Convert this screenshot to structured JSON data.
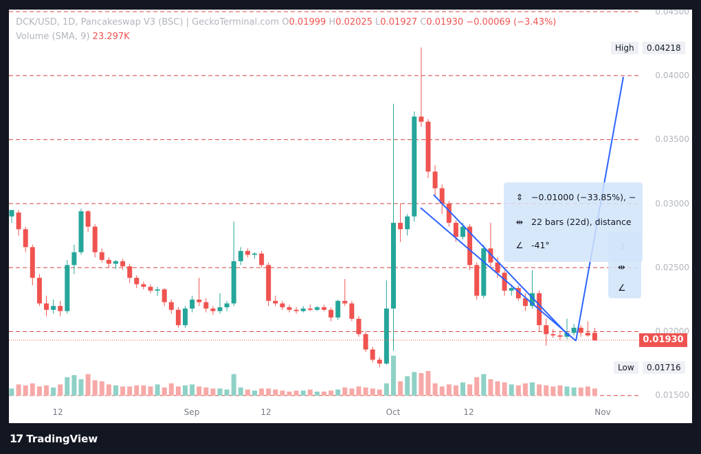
{
  "header": {
    "symbol": "DCK/USD, 1D, Pancakeswap V3 (BSC) | GeckoTerminal.com",
    "o_label": "O",
    "o": "0.01999",
    "h_label": "H",
    "h": "0.02025",
    "l_label": "L",
    "l": "0.01927",
    "c_label": "C",
    "c": "0.01930",
    "change": "−0.00069 (−3.43%)",
    "volume_label": "Volume (SMA, 9)",
    "volume": "23.297K"
  },
  "price_axis": [
    "0.04500",
    "0.04000",
    "0.03500",
    "0.03000",
    "0.02500",
    "0.02000",
    "0.01500"
  ],
  "high_label": "High",
  "high_value": "0.04218",
  "low_label": "Low",
  "low_value": "0.01716",
  "current_price": "0.01930",
  "time_axis": [
    "12",
    "Sep",
    "12",
    "Oct",
    "12",
    "Nov"
  ],
  "measure": {
    "price_change": "−0.01000 (−33.85%), −",
    "bars": "22 bars (22d), distance",
    "angle": "-41°"
  },
  "branding": "TradingView",
  "colors": {
    "up": "#26a69a",
    "down": "#ef5350",
    "vol_up": "#8fd1c7",
    "vol_down": "#f7a9a7",
    "hline": "#d5473f",
    "trend": "#2962ff",
    "measure_bg": "#d1e4fa"
  },
  "chart_data": {
    "type": "candlestick",
    "interval": "1D",
    "ylim": [
      0.0144,
      0.0452
    ],
    "hlines": [
      0.045,
      0.04,
      0.035,
      0.03,
      0.025,
      0.02,
      0.015
    ],
    "candles": [
      {
        "o": 0.029,
        "h": 0.0295,
        "l": 0.0285,
        "c": 0.0295
      },
      {
        "o": 0.0293,
        "h": 0.0295,
        "l": 0.0275,
        "c": 0.028
      },
      {
        "o": 0.028,
        "h": 0.0282,
        "l": 0.0262,
        "c": 0.0266
      },
      {
        "o": 0.0266,
        "h": 0.0268,
        "l": 0.0236,
        "c": 0.0242
      },
      {
        "o": 0.0242,
        "h": 0.0245,
        "l": 0.022,
        "c": 0.0222
      },
      {
        "o": 0.0222,
        "h": 0.0228,
        "l": 0.0212,
        "c": 0.0217
      },
      {
        "o": 0.0217,
        "h": 0.0225,
        "l": 0.0214,
        "c": 0.022
      },
      {
        "o": 0.022,
        "h": 0.0224,
        "l": 0.0212,
        "c": 0.0216
      },
      {
        "o": 0.0216,
        "h": 0.0256,
        "l": 0.0214,
        "c": 0.0252
      },
      {
        "o": 0.0252,
        "h": 0.0268,
        "l": 0.0245,
        "c": 0.0262
      },
      {
        "o": 0.0262,
        "h": 0.0296,
        "l": 0.026,
        "c": 0.0294
      },
      {
        "o": 0.0294,
        "h": 0.0295,
        "l": 0.0278,
        "c": 0.0282
      },
      {
        "o": 0.0282,
        "h": 0.0284,
        "l": 0.0258,
        "c": 0.0262
      },
      {
        "o": 0.0262,
        "h": 0.0265,
        "l": 0.0254,
        "c": 0.0256
      },
      {
        "o": 0.0256,
        "h": 0.0258,
        "l": 0.025,
        "c": 0.0253
      },
      {
        "o": 0.0253,
        "h": 0.0256,
        "l": 0.0249,
        "c": 0.0255
      },
      {
        "o": 0.0255,
        "h": 0.0257,
        "l": 0.0248,
        "c": 0.0251
      },
      {
        "o": 0.0251,
        "h": 0.0253,
        "l": 0.0238,
        "c": 0.0242
      },
      {
        "o": 0.0242,
        "h": 0.0244,
        "l": 0.0234,
        "c": 0.0237
      },
      {
        "o": 0.0237,
        "h": 0.0239,
        "l": 0.0233,
        "c": 0.0235
      },
      {
        "o": 0.0235,
        "h": 0.0237,
        "l": 0.023,
        "c": 0.0232
      },
      {
        "o": 0.0232,
        "h": 0.0235,
        "l": 0.0228,
        "c": 0.0233
      },
      {
        "o": 0.0233,
        "h": 0.0234,
        "l": 0.022,
        "c": 0.0223
      },
      {
        "o": 0.0223,
        "h": 0.0225,
        "l": 0.0214,
        "c": 0.0217
      },
      {
        "o": 0.0217,
        "h": 0.0219,
        "l": 0.0203,
        "c": 0.0205
      },
      {
        "o": 0.0205,
        "h": 0.022,
        "l": 0.0203,
        "c": 0.0218
      },
      {
        "o": 0.0218,
        "h": 0.0228,
        "l": 0.0215,
        "c": 0.0225
      },
      {
        "o": 0.0225,
        "h": 0.0242,
        "l": 0.022,
        "c": 0.0223
      },
      {
        "o": 0.0223,
        "h": 0.0226,
        "l": 0.0215,
        "c": 0.0218
      },
      {
        "o": 0.0218,
        "h": 0.022,
        "l": 0.0213,
        "c": 0.0216
      },
      {
        "o": 0.0216,
        "h": 0.023,
        "l": 0.0214,
        "c": 0.0219
      },
      {
        "o": 0.0219,
        "h": 0.0224,
        "l": 0.0216,
        "c": 0.0222
      },
      {
        "o": 0.0222,
        "h": 0.0286,
        "l": 0.022,
        "c": 0.0255
      },
      {
        "o": 0.0255,
        "h": 0.0266,
        "l": 0.0252,
        "c": 0.0263
      },
      {
        "o": 0.0263,
        "h": 0.0265,
        "l": 0.0258,
        "c": 0.026
      },
      {
        "o": 0.026,
        "h": 0.0262,
        "l": 0.0257,
        "c": 0.0261
      },
      {
        "o": 0.0261,
        "h": 0.0263,
        "l": 0.025,
        "c": 0.0252
      },
      {
        "o": 0.0252,
        "h": 0.0254,
        "l": 0.022,
        "c": 0.0224
      },
      {
        "o": 0.0224,
        "h": 0.0228,
        "l": 0.022,
        "c": 0.0222
      },
      {
        "o": 0.0222,
        "h": 0.0224,
        "l": 0.0217,
        "c": 0.0219
      },
      {
        "o": 0.0219,
        "h": 0.0221,
        "l": 0.0215,
        "c": 0.0217
      },
      {
        "o": 0.0217,
        "h": 0.0219,
        "l": 0.0214,
        "c": 0.0216
      },
      {
        "o": 0.0216,
        "h": 0.022,
        "l": 0.0215,
        "c": 0.0218
      },
      {
        "o": 0.0218,
        "h": 0.0221,
        "l": 0.0216,
        "c": 0.0217
      },
      {
        "o": 0.0217,
        "h": 0.022,
        "l": 0.0216,
        "c": 0.0219
      },
      {
        "o": 0.0219,
        "h": 0.0221,
        "l": 0.0216,
        "c": 0.0217
      },
      {
        "o": 0.0217,
        "h": 0.0219,
        "l": 0.0208,
        "c": 0.0211
      },
      {
        "o": 0.0211,
        "h": 0.0225,
        "l": 0.0209,
        "c": 0.0224
      },
      {
        "o": 0.0224,
        "h": 0.0241,
        "l": 0.022,
        "c": 0.0222
      },
      {
        "o": 0.0222,
        "h": 0.0224,
        "l": 0.0208,
        "c": 0.021
      },
      {
        "o": 0.021,
        "h": 0.0212,
        "l": 0.0196,
        "c": 0.0198
      },
      {
        "o": 0.0198,
        "h": 0.02,
        "l": 0.0184,
        "c": 0.0186
      },
      {
        "o": 0.0186,
        "h": 0.0188,
        "l": 0.0176,
        "c": 0.0178
      },
      {
        "o": 0.0178,
        "h": 0.018,
        "l": 0.0172,
        "c": 0.0175
      },
      {
        "o": 0.0175,
        "h": 0.024,
        "l": 0.0174,
        "c": 0.0218
      },
      {
        "o": 0.0218,
        "h": 0.0378,
        "l": 0.0185,
        "c": 0.0285
      },
      {
        "o": 0.0285,
        "h": 0.03,
        "l": 0.027,
        "c": 0.028
      },
      {
        "o": 0.028,
        "h": 0.0292,
        "l": 0.0275,
        "c": 0.029
      },
      {
        "o": 0.029,
        "h": 0.0372,
        "l": 0.0286,
        "c": 0.0368
      },
      {
        "o": 0.0368,
        "h": 0.0422,
        "l": 0.036,
        "c": 0.0364
      },
      {
        "o": 0.0364,
        "h": 0.0366,
        "l": 0.032,
        "c": 0.0325
      },
      {
        "o": 0.0325,
        "h": 0.033,
        "l": 0.0305,
        "c": 0.0312
      },
      {
        "o": 0.0312,
        "h": 0.0315,
        "l": 0.0292,
        "c": 0.03
      },
      {
        "o": 0.03,
        "h": 0.0302,
        "l": 0.0282,
        "c": 0.0285
      },
      {
        "o": 0.0285,
        "h": 0.0287,
        "l": 0.027,
        "c": 0.0274
      },
      {
        "o": 0.0274,
        "h": 0.0285,
        "l": 0.0272,
        "c": 0.0282
      },
      {
        "o": 0.0282,
        "h": 0.0284,
        "l": 0.0248,
        "c": 0.0252
      },
      {
        "o": 0.0252,
        "h": 0.0254,
        "l": 0.0225,
        "c": 0.0228
      },
      {
        "o": 0.0228,
        "h": 0.0268,
        "l": 0.0226,
        "c": 0.0265
      },
      {
        "o": 0.0265,
        "h": 0.0285,
        "l": 0.025,
        "c": 0.0254
      },
      {
        "o": 0.0254,
        "h": 0.0258,
        "l": 0.0242,
        "c": 0.0246
      },
      {
        "o": 0.0246,
        "h": 0.0248,
        "l": 0.0228,
        "c": 0.0232
      },
      {
        "o": 0.0232,
        "h": 0.0236,
        "l": 0.0228,
        "c": 0.0234
      },
      {
        "o": 0.0234,
        "h": 0.0236,
        "l": 0.0224,
        "c": 0.0226
      },
      {
        "o": 0.0226,
        "h": 0.023,
        "l": 0.0216,
        "c": 0.022
      },
      {
        "o": 0.022,
        "h": 0.0248,
        "l": 0.0218,
        "c": 0.023
      },
      {
        "o": 0.023,
        "h": 0.0232,
        "l": 0.02,
        "c": 0.0205
      },
      {
        "o": 0.0205,
        "h": 0.021,
        "l": 0.0189,
        "c": 0.0198
      },
      {
        "o": 0.0198,
        "h": 0.0202,
        "l": 0.0195,
        "c": 0.0197
      },
      {
        "o": 0.0197,
        "h": 0.02,
        "l": 0.0193,
        "c": 0.0196
      },
      {
        "o": 0.0196,
        "h": 0.021,
        "l": 0.0194,
        "c": 0.0199
      },
      {
        "o": 0.0199,
        "h": 0.0206,
        "l": 0.0197,
        "c": 0.0203
      },
      {
        "o": 0.0203,
        "h": 0.0205,
        "l": 0.0196,
        "c": 0.0199
      },
      {
        "o": 0.0199,
        "h": 0.0208,
        "l": 0.0196,
        "c": 0.0197
      },
      {
        "o": 0.0199,
        "h": 0.0203,
        "l": 0.0193,
        "c": 0.0193
      }
    ],
    "volume": [
      0.35,
      0.55,
      0.5,
      0.6,
      0.45,
      0.5,
      0.4,
      0.55,
      0.9,
      1.0,
      0.8,
      1.05,
      0.75,
      0.7,
      0.55,
      0.5,
      0.45,
      0.45,
      0.5,
      0.5,
      0.45,
      0.55,
      0.4,
      0.6,
      0.45,
      0.5,
      0.55,
      0.45,
      0.4,
      0.35,
      0.35,
      0.3,
      1.05,
      0.4,
      0.3,
      0.25,
      0.35,
      0.35,
      0.3,
      0.25,
      0.2,
      0.25,
      0.25,
      0.3,
      0.2,
      0.2,
      0.25,
      0.3,
      0.4,
      0.35,
      0.45,
      0.4,
      0.35,
      0.3,
      0.6,
      1.95,
      0.7,
      0.95,
      1.15,
      1.1,
      1.2,
      0.6,
      0.45,
      0.55,
      0.5,
      0.65,
      0.55,
      0.9,
      1.05,
      0.8,
      0.7,
      0.65,
      0.55,
      0.5,
      0.6,
      0.65,
      0.55,
      0.5,
      0.45,
      0.5,
      0.45,
      0.4,
      0.4,
      0.45,
      0.35
    ]
  }
}
